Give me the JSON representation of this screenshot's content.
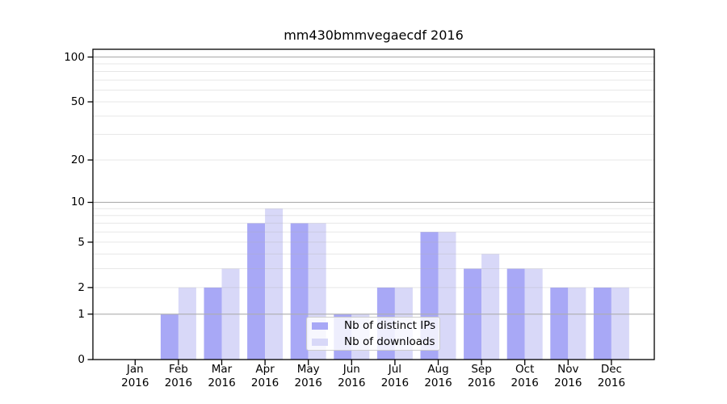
{
  "title": "mm430bmmvegaecdf 2016",
  "legend": {
    "items": [
      {
        "label": "Nb of distinct IPs",
        "color": "#a8a8f6"
      },
      {
        "label": "Nb of downloads",
        "color": "#d8d8f8"
      }
    ]
  },
  "chart_data": {
    "type": "bar",
    "title": "mm430bmmvegaecdf 2016",
    "categories": [
      "Jan",
      "Feb",
      "Mar",
      "Apr",
      "May",
      "Jun",
      "Jul",
      "Aug",
      "Sep",
      "Oct",
      "Nov",
      "Dec"
    ],
    "x_year_line": "2016",
    "series": [
      {
        "name": "Nb of distinct IPs",
        "color": "#a8a8f6",
        "values": [
          0,
          1,
          2,
          7,
          7,
          1,
          2,
          6,
          3,
          3,
          2,
          2
        ]
      },
      {
        "name": "Nb of downloads",
        "color": "#d8d8f8",
        "values": [
          0,
          2,
          3,
          9,
          7,
          1,
          2,
          6,
          4,
          3,
          2,
          2
        ]
      }
    ],
    "yscale": "log10(1+v)",
    "yticks": [
      0,
      1,
      2,
      5,
      10,
      20,
      50,
      100
    ],
    "ylim": [
      0,
      113
    ],
    "grid": {
      "major": [
        1,
        10,
        100
      ],
      "minor": [
        2,
        3,
        4,
        5,
        6,
        7,
        8,
        9,
        20,
        30,
        40,
        50,
        60,
        70,
        80,
        90
      ],
      "major_color": "#aeaeae",
      "minor_alpha": 0.3
    },
    "legend_position": "lower center",
    "spine_color": "#000000"
  }
}
